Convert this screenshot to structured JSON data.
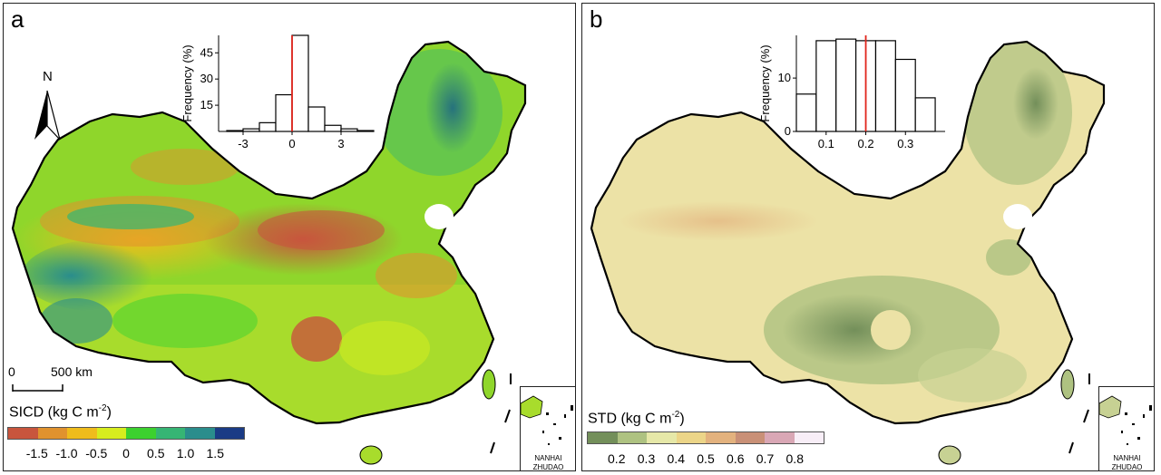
{
  "panel_a": {
    "letter": "a",
    "north_label": "N",
    "scale_zero": "0",
    "scale_distance": "500 km",
    "legend_title": "SICD (kg C m",
    "legend_sup": "-2",
    "legend_close": ")",
    "legend_colors": [
      "#c8553d",
      "#e0922e",
      "#efbc1c",
      "#d7ed1e",
      "#3cd12f",
      "#36b574",
      "#2a8d8c",
      "#1a3b85"
    ],
    "legend_ticks": [
      "-1.5",
      "-1.0",
      "-0.5",
      "0",
      "0.5",
      "1.0",
      "1.5"
    ],
    "histogram": {
      "ylabel": "Frequency (%)",
      "yticks": [
        "15",
        "30",
        "45"
      ],
      "xticks": [
        "-3",
        "0",
        "3"
      ],
      "bars": [
        0.5,
        1.5,
        5,
        21,
        55,
        14,
        3.5,
        1.5,
        0.5
      ],
      "ymax": 55,
      "mean_line_x": 0
    },
    "inset_label_1": "NANHAI",
    "inset_label_2": "ZHUDAO"
  },
  "panel_b": {
    "letter": "b",
    "legend_title": "STD (kg C m",
    "legend_sup": "-2",
    "legend_close": ")",
    "legend_colors": [
      "#738f5a",
      "#aec281",
      "#e6e8a8",
      "#ecd588",
      "#e3b27e",
      "#c99077",
      "#d9a7b5",
      "#f8eef7"
    ],
    "legend_ticks": [
      "0.2",
      "0.3",
      "0.4",
      "0.5",
      "0.6",
      "0.7",
      "0.8"
    ],
    "histogram": {
      "ylabel": "Frequency (%)",
      "yticks": [
        "0",
        "10"
      ],
      "xticks": [
        "0.1",
        "0.2",
        "0.3"
      ],
      "bars": [
        7,
        17,
        17.3,
        17,
        17,
        13.5,
        6.3
      ],
      "ymax": 18,
      "mean_line_x": 0.2
    },
    "inset_label_1": "NANHAI",
    "inset_label_2": "ZHUDAO"
  }
}
